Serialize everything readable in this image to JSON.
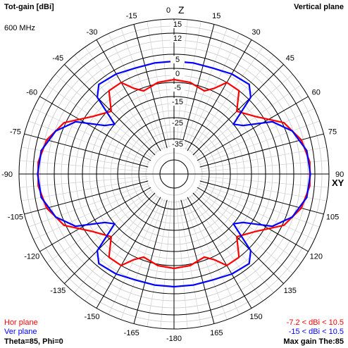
{
  "header": {
    "title": "Tot-gain [dBi]",
    "plane": "Vertical plane",
    "frequency": "600 MHz"
  },
  "axis_labels": {
    "top": "Z",
    "right": "XY"
  },
  "legend": {
    "hor_label": "Hor plane",
    "ver_label": "Ver plane",
    "hor_range": "-7.2 < dBi < 10.5",
    "ver_range": "-15 < dBi < 10.5",
    "hor_color": "#ff0000",
    "ver_color": "#0000ff"
  },
  "footer": {
    "left": "Theta=85, Phi=0",
    "right": "Max gain The:85"
  },
  "chart_data": {
    "type": "polar",
    "title": "Tot-gain [dBi]",
    "radial_unit": "dBi",
    "radial_ticks": [
      15,
      12,
      5,
      0,
      -5,
      -15,
      -25,
      -35
    ],
    "rlim": [
      -40,
      15
    ],
    "angle_ticks": [
      {
        "deg": 0,
        "label": "0"
      },
      {
        "deg": 15,
        "label": "15"
      },
      {
        "deg": 30,
        "label": "30"
      },
      {
        "deg": 45,
        "label": "45"
      },
      {
        "deg": 60,
        "label": "60"
      },
      {
        "deg": 75,
        "label": "75"
      },
      {
        "deg": 90,
        "label": "90"
      },
      {
        "deg": 105,
        "label": "105"
      },
      {
        "deg": 120,
        "label": "120"
      },
      {
        "deg": 135,
        "label": "135"
      },
      {
        "deg": 150,
        "label": "150"
      },
      {
        "deg": 165,
        "label": "165"
      },
      {
        "deg": 180,
        "label": "-180"
      },
      {
        "deg": -165,
        "label": "-165"
      },
      {
        "deg": -150,
        "label": "-150"
      },
      {
        "deg": -135,
        "label": "-135"
      },
      {
        "deg": -120,
        "label": "-120"
      },
      {
        "deg": -105,
        "label": "-105"
      },
      {
        "deg": -90,
        "label": "-90"
      },
      {
        "deg": -75,
        "label": "-75"
      },
      {
        "deg": -60,
        "label": "-60"
      },
      {
        "deg": -45,
        "label": "-45"
      },
      {
        "deg": -30,
        "label": "-30"
      },
      {
        "deg": -15,
        "label": "-15"
      }
    ],
    "grid": true,
    "series": [
      {
        "name": "Hor plane",
        "color": "#ff0000",
        "points": [
          {
            "theta": 0,
            "gain": -4.0
          },
          {
            "theta": 10,
            "gain": -4.5
          },
          {
            "theta": 20,
            "gain": -7.2
          },
          {
            "theta": 25,
            "gain": -4.0
          },
          {
            "theta": 30,
            "gain": 0.0
          },
          {
            "theta": 38,
            "gain": 0.0
          },
          {
            "theta": 45,
            "gain": -7.0
          },
          {
            "theta": 55,
            "gain": -2.0
          },
          {
            "theta": 65,
            "gain": 5.5
          },
          {
            "theta": 75,
            "gain": 9.0
          },
          {
            "theta": 85,
            "gain": 10.5
          },
          {
            "theta": 95,
            "gain": 10.5
          },
          {
            "theta": 105,
            "gain": 9.0
          },
          {
            "theta": 115,
            "gain": 5.5
          },
          {
            "theta": 125,
            "gain": -2.0
          },
          {
            "theta": 135,
            "gain": -7.0
          },
          {
            "theta": 142,
            "gain": 0.0
          },
          {
            "theta": 150,
            "gain": 0.0
          },
          {
            "theta": 155,
            "gain": -4.0
          },
          {
            "theta": 160,
            "gain": -7.2
          },
          {
            "theta": 170,
            "gain": -4.5
          },
          {
            "theta": 180,
            "gain": -4.0
          },
          {
            "theta": -170,
            "gain": -4.5
          },
          {
            "theta": -160,
            "gain": -7.2
          },
          {
            "theta": -155,
            "gain": -4.0
          },
          {
            "theta": -150,
            "gain": 0.0
          },
          {
            "theta": -142,
            "gain": 0.0
          },
          {
            "theta": -135,
            "gain": -7.0
          },
          {
            "theta": -125,
            "gain": -2.0
          },
          {
            "theta": -115,
            "gain": 5.5
          },
          {
            "theta": -105,
            "gain": 9.0
          },
          {
            "theta": -95,
            "gain": 10.5
          },
          {
            "theta": -85,
            "gain": 10.5
          },
          {
            "theta": -75,
            "gain": 9.0
          },
          {
            "theta": -65,
            "gain": 5.5
          },
          {
            "theta": -55,
            "gain": -2.0
          },
          {
            "theta": -45,
            "gain": -7.0
          },
          {
            "theta": -38,
            "gain": 0.0
          },
          {
            "theta": -30,
            "gain": 0.0
          },
          {
            "theta": -25,
            "gain": -4.0
          },
          {
            "theta": -20,
            "gain": -7.2
          },
          {
            "theta": -10,
            "gain": -4.5
          }
        ]
      },
      {
        "name": "Ver plane",
        "color": "#0000ff",
        "points": [
          {
            "theta": 0,
            "gain": 2.5
          },
          {
            "theta": 10,
            "gain": 2.5
          },
          {
            "theta": 20,
            "gain": 2.5
          },
          {
            "theta": 30,
            "gain": 3.5
          },
          {
            "theta": 40,
            "gain": 4.0
          },
          {
            "theta": 45,
            "gain": 1.0
          },
          {
            "theta": 50,
            "gain": -15.0
          },
          {
            "theta": 55,
            "gain": -10.0
          },
          {
            "theta": 62,
            "gain": 2.0
          },
          {
            "theta": 70,
            "gain": 7.0
          },
          {
            "theta": 80,
            "gain": 10.0
          },
          {
            "theta": 90,
            "gain": 10.5
          },
          {
            "theta": 100,
            "gain": 10.0
          },
          {
            "theta": 110,
            "gain": 7.0
          },
          {
            "theta": 118,
            "gain": 2.0
          },
          {
            "theta": 125,
            "gain": -10.0
          },
          {
            "theta": 130,
            "gain": -15.0
          },
          {
            "theta": 135,
            "gain": 1.0
          },
          {
            "theta": 140,
            "gain": 4.0
          },
          {
            "theta": 150,
            "gain": 3.5
          },
          {
            "theta": 160,
            "gain": 2.5
          },
          {
            "theta": 170,
            "gain": 2.5
          },
          {
            "theta": 180,
            "gain": 2.5
          },
          {
            "theta": -170,
            "gain": 2.5
          },
          {
            "theta": -160,
            "gain": 2.5
          },
          {
            "theta": -150,
            "gain": 3.5
          },
          {
            "theta": -140,
            "gain": 4.0
          },
          {
            "theta": -135,
            "gain": 1.0
          },
          {
            "theta": -130,
            "gain": -15.0
          },
          {
            "theta": -125,
            "gain": -10.0
          },
          {
            "theta": -118,
            "gain": 2.0
          },
          {
            "theta": -110,
            "gain": 7.0
          },
          {
            "theta": -100,
            "gain": 10.0
          },
          {
            "theta": -90,
            "gain": 10.5
          },
          {
            "theta": -80,
            "gain": 10.0
          },
          {
            "theta": -70,
            "gain": 7.0
          },
          {
            "theta": -62,
            "gain": 2.0
          },
          {
            "theta": -55,
            "gain": -10.0
          },
          {
            "theta": -50,
            "gain": -15.0
          },
          {
            "theta": -45,
            "gain": 1.0
          },
          {
            "theta": -40,
            "gain": 4.0
          },
          {
            "theta": -30,
            "gain": 3.5
          },
          {
            "theta": -20,
            "gain": 2.5
          },
          {
            "theta": -10,
            "gain": 2.5
          }
        ]
      }
    ]
  }
}
